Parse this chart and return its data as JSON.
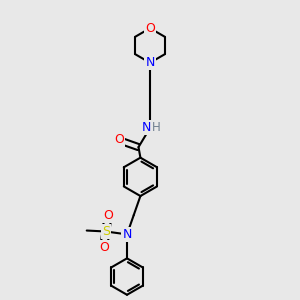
{
  "background_color": "#e8e8e8",
  "atom_colors": {
    "C": "#000000",
    "N": "#0000ff",
    "O": "#ff0000",
    "S": "#cccc00",
    "H": "#708090"
  },
  "bond_color": "#000000",
  "figsize": [
    3.0,
    3.0
  ],
  "dpi": 100
}
